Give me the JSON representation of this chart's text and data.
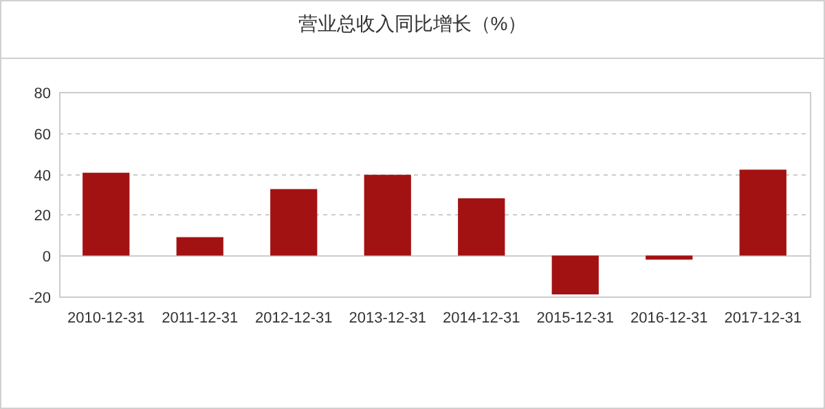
{
  "chart_data": {
    "type": "bar",
    "title": "营业总收入同比增长（%）",
    "categories": [
      "2010-12-31",
      "2011-12-31",
      "2012-12-31",
      "2013-12-31",
      "2014-12-31",
      "2015-12-31",
      "2016-12-31",
      "2017-12-31"
    ],
    "values": [
      40.5,
      9,
      32.5,
      39.5,
      28,
      -19,
      -2,
      42
    ],
    "color": "#a31212",
    "ylim": [
      -20,
      80
    ],
    "yticks": [
      -20,
      0,
      20,
      40,
      60,
      80
    ],
    "grid": "y"
  }
}
